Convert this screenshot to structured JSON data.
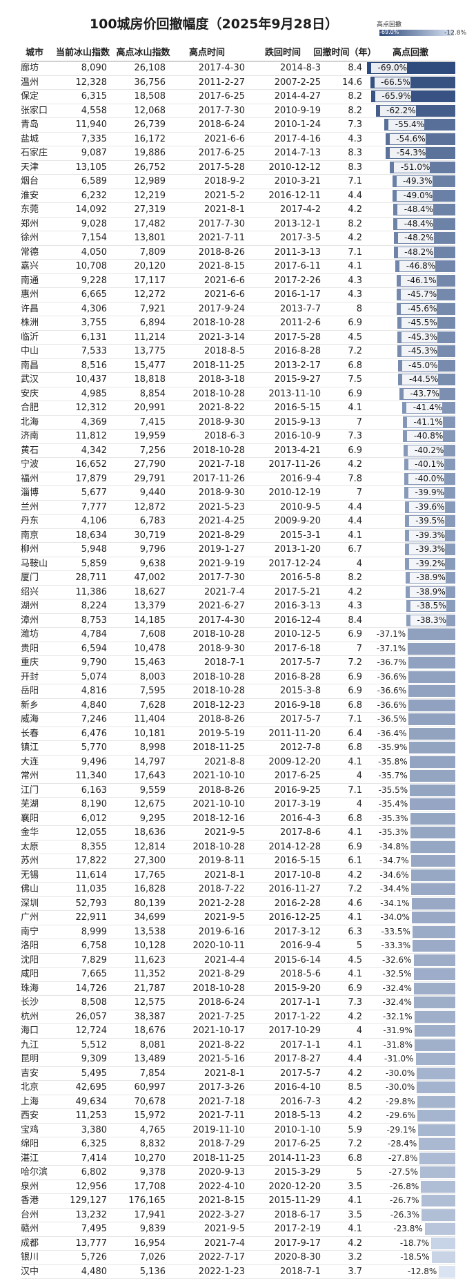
{
  "title": "100城房价回撤幅度（2025年9月28日）",
  "legend": {
    "title": "高点回撤",
    "min_label": "-69.0%",
    "max_label": "-12.8%"
  },
  "columns": [
    "城市",
    "当前冰山指数",
    "高点冰山指数",
    "高点时间",
    "跌回时间",
    "回撤时间（年）",
    "高点回撤"
  ],
  "colors": {
    "bar_dark": "#2f4a7c",
    "bar_light": "#d9e3f2",
    "header_rule": "#999999"
  },
  "rows": [
    [
      "廊坊",
      "8,090",
      "26,108",
      "2017-4-30",
      "2014-8-3",
      "8.4",
      "-69.0%"
    ],
    [
      "温州",
      "12,328",
      "36,756",
      "2011-2-27",
      "2007-2-25",
      "14.6",
      "-66.5%"
    ],
    [
      "保定",
      "6,315",
      "18,508",
      "2017-6-25",
      "2014-4-27",
      "8.2",
      "-65.9%"
    ],
    [
      "张家口",
      "4,558",
      "12,068",
      "2017-7-30",
      "2010-9-19",
      "8.2",
      "-62.2%"
    ],
    [
      "青岛",
      "11,940",
      "26,739",
      "2018-6-24",
      "2010-1-24",
      "7.3",
      "-55.4%"
    ],
    [
      "盐城",
      "7,335",
      "16,172",
      "2021-6-6",
      "2017-4-16",
      "4.3",
      "-54.6%"
    ],
    [
      "石家庄",
      "9,087",
      "19,886",
      "2017-6-25",
      "2014-7-13",
      "8.3",
      "-54.3%"
    ],
    [
      "天津",
      "13,105",
      "26,752",
      "2017-5-28",
      "2010-12-12",
      "8.3",
      "-51.0%"
    ],
    [
      "烟台",
      "6,589",
      "12,989",
      "2018-9-2",
      "2010-3-21",
      "7.1",
      "-49.3%"
    ],
    [
      "淮安",
      "6,232",
      "12,219",
      "2021-5-2",
      "2016-12-11",
      "4.4",
      "-49.0%"
    ],
    [
      "东莞",
      "14,092",
      "27,319",
      "2021-8-1",
      "2017-4-2",
      "4.2",
      "-48.4%"
    ],
    [
      "郑州",
      "9,028",
      "17,482",
      "2017-7-30",
      "2013-12-1",
      "8.2",
      "-48.4%"
    ],
    [
      "徐州",
      "7,154",
      "13,801",
      "2021-7-11",
      "2017-3-5",
      "4.2",
      "-48.2%"
    ],
    [
      "常德",
      "4,050",
      "7,809",
      "2018-8-26",
      "2011-3-13",
      "7.1",
      "-48.2%"
    ],
    [
      "嘉兴",
      "10,708",
      "20,120",
      "2021-8-15",
      "2017-6-11",
      "4.1",
      "-46.8%"
    ],
    [
      "南通",
      "9,228",
      "17,117",
      "2021-6-6",
      "2017-2-26",
      "4.3",
      "-46.1%"
    ],
    [
      "惠州",
      "6,665",
      "12,272",
      "2021-6-6",
      "2016-1-17",
      "4.3",
      "-45.7%"
    ],
    [
      "许昌",
      "4,306",
      "7,921",
      "2017-9-24",
      "2013-7-7",
      "8",
      "-45.6%"
    ],
    [
      "株洲",
      "3,755",
      "6,894",
      "2018-10-28",
      "2011-2-6",
      "6.9",
      "-45.5%"
    ],
    [
      "临沂",
      "6,131",
      "11,214",
      "2021-3-14",
      "2017-5-28",
      "4.5",
      "-45.3%"
    ],
    [
      "中山",
      "7,533",
      "13,775",
      "2018-8-5",
      "2016-8-28",
      "7.2",
      "-45.3%"
    ],
    [
      "南昌",
      "8,516",
      "15,477",
      "2018-11-25",
      "2013-2-17",
      "6.8",
      "-45.0%"
    ],
    [
      "武汉",
      "10,437",
      "18,818",
      "2018-3-18",
      "2015-9-27",
      "7.5",
      "-44.5%"
    ],
    [
      "安庆",
      "4,985",
      "8,854",
      "2018-10-28",
      "2013-11-10",
      "6.9",
      "-43.7%"
    ],
    [
      "合肥",
      "12,312",
      "20,991",
      "2021-8-22",
      "2016-5-15",
      "4.1",
      "-41.4%"
    ],
    [
      "北海",
      "4,369",
      "7,415",
      "2018-9-30",
      "2015-9-13",
      "7",
      "-41.1%"
    ],
    [
      "济南",
      "11,812",
      "19,959",
      "2018-6-3",
      "2016-10-9",
      "7.3",
      "-40.8%"
    ],
    [
      "黄石",
      "4,342",
      "7,256",
      "2018-10-28",
      "2013-4-21",
      "6.9",
      "-40.2%"
    ],
    [
      "宁波",
      "16,652",
      "27,790",
      "2021-7-18",
      "2017-11-26",
      "4.2",
      "-40.1%"
    ],
    [
      "福州",
      "17,879",
      "29,791",
      "2017-11-26",
      "2016-9-4",
      "7.8",
      "-40.0%"
    ],
    [
      "淄博",
      "5,677",
      "9,440",
      "2018-9-30",
      "2010-12-19",
      "7",
      "-39.9%"
    ],
    [
      "兰州",
      "7,777",
      "12,872",
      "2021-5-23",
      "2010-9-5",
      "4.4",
      "-39.6%"
    ],
    [
      "丹东",
      "4,106",
      "6,783",
      "2021-4-25",
      "2009-9-20",
      "4.4",
      "-39.5%"
    ],
    [
      "南京",
      "18,634",
      "30,719",
      "2021-8-29",
      "2015-3-1",
      "4.1",
      "-39.3%"
    ],
    [
      "柳州",
      "5,948",
      "9,796",
      "2019-1-27",
      "2013-1-20",
      "6.7",
      "-39.3%"
    ],
    [
      "马鞍山",
      "5,859",
      "9,638",
      "2021-9-19",
      "2017-12-24",
      "4",
      "-39.2%"
    ],
    [
      "厦门",
      "28,711",
      "47,002",
      "2017-7-30",
      "2016-5-8",
      "8.2",
      "-38.9%"
    ],
    [
      "绍兴",
      "11,386",
      "18,627",
      "2021-7-4",
      "2017-5-21",
      "4.2",
      "-38.9%"
    ],
    [
      "湖州",
      "8,224",
      "13,379",
      "2021-6-27",
      "2016-3-13",
      "4.3",
      "-38.5%"
    ],
    [
      "漳州",
      "8,753",
      "14,185",
      "2017-4-30",
      "2016-12-4",
      "8.4",
      "-38.3%"
    ],
    [
      "潍坊",
      "4,784",
      "7,608",
      "2018-10-28",
      "2010-12-5",
      "6.9",
      "-37.1%"
    ],
    [
      "贵阳",
      "6,594",
      "10,478",
      "2018-9-30",
      "2017-6-18",
      "7",
      "-37.1%"
    ],
    [
      "重庆",
      "9,790",
      "15,463",
      "2018-7-1",
      "2017-5-7",
      "7.2",
      "-36.7%"
    ],
    [
      "开封",
      "5,074",
      "8,003",
      "2018-10-28",
      "2016-8-28",
      "6.9",
      "-36.6%"
    ],
    [
      "岳阳",
      "4,816",
      "7,595",
      "2018-10-28",
      "2015-3-8",
      "6.9",
      "-36.6%"
    ],
    [
      "新乡",
      "4,840",
      "7,628",
      "2018-12-23",
      "2016-9-18",
      "6.8",
      "-36.6%"
    ],
    [
      "威海",
      "7,246",
      "11,404",
      "2018-8-26",
      "2017-5-7",
      "7.1",
      "-36.5%"
    ],
    [
      "长春",
      "6,476",
      "10,181",
      "2019-5-19",
      "2011-11-20",
      "6.4",
      "-36.4%"
    ],
    [
      "镇江",
      "5,770",
      "8,998",
      "2018-11-25",
      "2012-7-8",
      "6.8",
      "-35.9%"
    ],
    [
      "大连",
      "9,496",
      "14,797",
      "2021-8-8",
      "2009-12-20",
      "4.1",
      "-35.8%"
    ],
    [
      "常州",
      "11,340",
      "17,643",
      "2021-10-10",
      "2017-6-25",
      "4",
      "-35.7%"
    ],
    [
      "江门",
      "6,163",
      "9,559",
      "2018-8-26",
      "2016-9-25",
      "7.1",
      "-35.5%"
    ],
    [
      "芜湖",
      "8,190",
      "12,675",
      "2021-10-10",
      "2017-3-19",
      "4",
      "-35.4%"
    ],
    [
      "襄阳",
      "6,012",
      "9,295",
      "2018-12-16",
      "2016-4-3",
      "6.8",
      "-35.3%"
    ],
    [
      "金华",
      "12,055",
      "18,636",
      "2021-9-5",
      "2017-8-6",
      "4.1",
      "-35.3%"
    ],
    [
      "太原",
      "8,355",
      "12,814",
      "2018-10-28",
      "2014-12-28",
      "6.9",
      "-34.8%"
    ],
    [
      "苏州",
      "17,822",
      "27,300",
      "2019-8-11",
      "2016-5-15",
      "6.1",
      "-34.7%"
    ],
    [
      "无锡",
      "11,614",
      "17,765",
      "2021-8-1",
      "2017-10-8",
      "4.2",
      "-34.6%"
    ],
    [
      "佛山",
      "11,035",
      "16,828",
      "2018-7-22",
      "2016-11-27",
      "7.2",
      "-34.4%"
    ],
    [
      "深圳",
      "52,793",
      "80,139",
      "2021-2-28",
      "2016-2-28",
      "4.6",
      "-34.1%"
    ],
    [
      "广州",
      "22,911",
      "34,699",
      "2021-9-5",
      "2016-12-25",
      "4.1",
      "-34.0%"
    ],
    [
      "南宁",
      "8,999",
      "13,538",
      "2019-6-16",
      "2017-3-12",
      "6.3",
      "-33.5%"
    ],
    [
      "洛阳",
      "6,758",
      "10,128",
      "2020-10-11",
      "2016-9-4",
      "5",
      "-33.3%"
    ],
    [
      "沈阳",
      "7,829",
      "11,623",
      "2021-4-4",
      "2015-6-14",
      "4.5",
      "-32.6%"
    ],
    [
      "咸阳",
      "7,665",
      "11,352",
      "2021-8-29",
      "2018-5-6",
      "4.1",
      "-32.5%"
    ],
    [
      "珠海",
      "14,726",
      "21,787",
      "2018-10-28",
      "2015-9-20",
      "6.9",
      "-32.4%"
    ],
    [
      "长沙",
      "8,508",
      "12,575",
      "2018-6-24",
      "2017-1-1",
      "7.3",
      "-32.4%"
    ],
    [
      "杭州",
      "26,057",
      "38,387",
      "2021-7-25",
      "2017-1-22",
      "4.2",
      "-32.1%"
    ],
    [
      "海口",
      "12,724",
      "18,676",
      "2021-10-17",
      "2017-10-29",
      "4",
      "-31.9%"
    ],
    [
      "九江",
      "5,512",
      "8,081",
      "2021-8-22",
      "2017-1-1",
      "4.1",
      "-31.8%"
    ],
    [
      "昆明",
      "9,309",
      "13,489",
      "2021-5-16",
      "2017-8-27",
      "4.4",
      "-31.0%"
    ],
    [
      "吉安",
      "5,495",
      "7,854",
      "2021-8-1",
      "2017-5-7",
      "4.2",
      "-30.0%"
    ],
    [
      "北京",
      "42,695",
      "60,997",
      "2017-3-26",
      "2016-4-10",
      "8.5",
      "-30.0%"
    ],
    [
      "上海",
      "49,634",
      "70,678",
      "2021-7-18",
      "2016-7-3",
      "4.2",
      "-29.8%"
    ],
    [
      "西安",
      "11,253",
      "15,972",
      "2021-7-11",
      "2018-5-13",
      "4.2",
      "-29.6%"
    ],
    [
      "宝鸡",
      "3,380",
      "4,765",
      "2019-11-10",
      "2010-1-10",
      "5.9",
      "-29.1%"
    ],
    [
      "绵阳",
      "6,325",
      "8,832",
      "2018-7-29",
      "2017-6-25",
      "7.2",
      "-28.4%"
    ],
    [
      "湛江",
      "7,414",
      "10,270",
      "2018-11-25",
      "2014-11-23",
      "6.8",
      "-27.8%"
    ],
    [
      "哈尔滨",
      "6,802",
      "9,378",
      "2020-9-13",
      "2015-3-29",
      "5",
      "-27.5%"
    ],
    [
      "泉州",
      "12,956",
      "17,708",
      "2022-4-10",
      "2020-12-20",
      "3.5",
      "-26.8%"
    ],
    [
      "香港",
      "129,127",
      "176,165",
      "2021-8-15",
      "2015-11-29",
      "4.1",
      "-26.7%"
    ],
    [
      "台州",
      "13,232",
      "17,941",
      "2022-3-27",
      "2018-6-17",
      "3.5",
      "-26.3%"
    ],
    [
      "赣州",
      "7,495",
      "9,839",
      "2021-9-5",
      "2017-2-19",
      "4.1",
      "-23.8%"
    ],
    [
      "成都",
      "13,777",
      "16,954",
      "2021-7-4",
      "2017-9-17",
      "4.2",
      "-18.7%"
    ],
    [
      "银川",
      "5,726",
      "7,026",
      "2022-7-17",
      "2020-8-30",
      "3.2",
      "-18.5%"
    ],
    [
      "汉中",
      "4,480",
      "5,136",
      "2022-1-23",
      "2018-7-1",
      "3.7",
      "-12.8%"
    ]
  ]
}
